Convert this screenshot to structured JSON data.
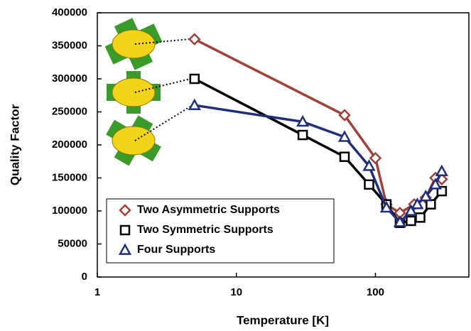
{
  "chart_data": {
    "type": "line",
    "x_label": "Temperature [K]",
    "y_label": "Quality Factor",
    "xscale": "log",
    "xlim": [
      1,
      470
    ],
    "xticks": [
      1,
      10,
      100
    ],
    "ylim": [
      0,
      400000
    ],
    "yticks": [
      0,
      50000,
      100000,
      150000,
      200000,
      250000,
      300000,
      350000,
      400000
    ],
    "legend": "lower left",
    "series": [
      {
        "name": "Two Asymmetric Supports",
        "color": "#a0413a",
        "marker": "diamond",
        "x": [
          5,
          60,
          100,
          120,
          150,
          190,
          230,
          270,
          300
        ],
        "values": [
          360000,
          245000,
          180000,
          110000,
          97000,
          110000,
          120000,
          150000,
          148000
        ]
      },
      {
        "name": "Two Symmetric Supports",
        "color": "#000000",
        "marker": "square",
        "x": [
          5,
          30,
          60,
          90,
          120,
          150,
          180,
          210,
          250,
          300
        ],
        "values": [
          300000,
          215000,
          182000,
          140000,
          110000,
          82000,
          85000,
          90000,
          110000,
          130000
        ]
      },
      {
        "name": "Four Supports",
        "color": "#1f2f7a",
        "marker": "triangle",
        "x": [
          5,
          30,
          60,
          90,
          120,
          150,
          180,
          200,
          230,
          270,
          300
        ],
        "values": [
          260000,
          235000,
          212000,
          168000,
          105000,
          83000,
          100000,
          110000,
          122000,
          140000,
          160000
        ]
      }
    ]
  }
}
